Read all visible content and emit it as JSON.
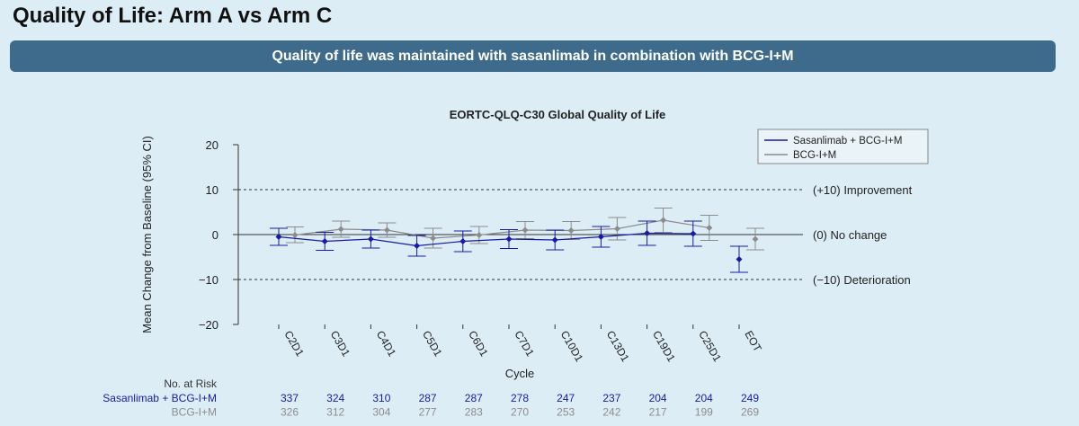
{
  "page": {
    "title": "Quality of Life: Arm A vs Arm C",
    "banner": "Quality of life was maintained with sasanlimab in combination with BCG-I+M"
  },
  "chart_data": {
    "type": "line",
    "title": "EORTC-QLQ-C30 Global Quality of Life",
    "xlabel": "Cycle",
    "ylabel": "Mean Change from Baseline (95% CI)",
    "ylim": [
      -21,
      21
    ],
    "yticks": [
      20,
      10,
      0,
      -10,
      -20
    ],
    "ytick_labels": [
      "20",
      "10",
      "0",
      "−10",
      "−20"
    ],
    "categories": [
      "C2D1",
      "C3D1",
      "C4D1",
      "C5D1",
      "C6D1",
      "C7D1",
      "C10D1",
      "C13D1",
      "C19D1",
      "C25D1",
      "EOT"
    ],
    "reference_lines": [
      {
        "y": 10,
        "label": "(+10) Improvement",
        "style": "dashed"
      },
      {
        "y": 0,
        "label": "(0) No change",
        "style": "solid"
      },
      {
        "y": -10,
        "label": "(−10) Deterioration",
        "style": "dashed"
      }
    ],
    "legend_position": "top-right",
    "series": [
      {
        "name": "Sasanlimab + BCG-I+M",
        "color": "#1a1aa6",
        "values": [
          -0.5,
          -1.5,
          -1.0,
          -2.5,
          -1.5,
          -1.0,
          -1.2,
          -0.5,
          0.3,
          0.2,
          -5.5
        ],
        "ci_low": [
          -2.4,
          -3.5,
          -3.0,
          -4.8,
          -3.8,
          -3.1,
          -3.4,
          -2.8,
          -2.4,
          -2.6,
          -8.4
        ],
        "ci_high": [
          1.4,
          0.5,
          1.0,
          -0.2,
          0.8,
          1.1,
          1.0,
          1.8,
          3.0,
          3.0,
          -2.6
        ]
      },
      {
        "name": "BCG-I+M",
        "color": "#8c8c8c",
        "values": [
          -0.1,
          1.2,
          1.0,
          -0.8,
          -0.1,
          1.0,
          0.9,
          1.3,
          3.2,
          1.5,
          -1.0
        ],
        "ci_low": [
          -1.8,
          -0.6,
          -0.6,
          -3.0,
          -2.0,
          -0.9,
          -1.1,
          -1.2,
          0.5,
          -1.3,
          -3.4
        ],
        "ci_high": [
          1.7,
          3.0,
          2.6,
          1.4,
          1.8,
          2.9,
          2.9,
          3.8,
          5.9,
          4.3,
          1.4
        ]
      }
    ],
    "at_risk": {
      "header": "No. at Risk",
      "rows": [
        {
          "label": "Sasanlimab + BCG-I+M",
          "color": "#1a1aa6",
          "values": [
            "337",
            "324",
            "310",
            "287",
            "287",
            "278",
            "247",
            "237",
            "204",
            "204",
            "249"
          ]
        },
        {
          "label": "BCG-I+M",
          "color": "#8c8c8c",
          "values": [
            "326",
            "312",
            "304",
            "277",
            "283",
            "270",
            "253",
            "242",
            "217",
            "199",
            "269"
          ]
        }
      ]
    }
  }
}
